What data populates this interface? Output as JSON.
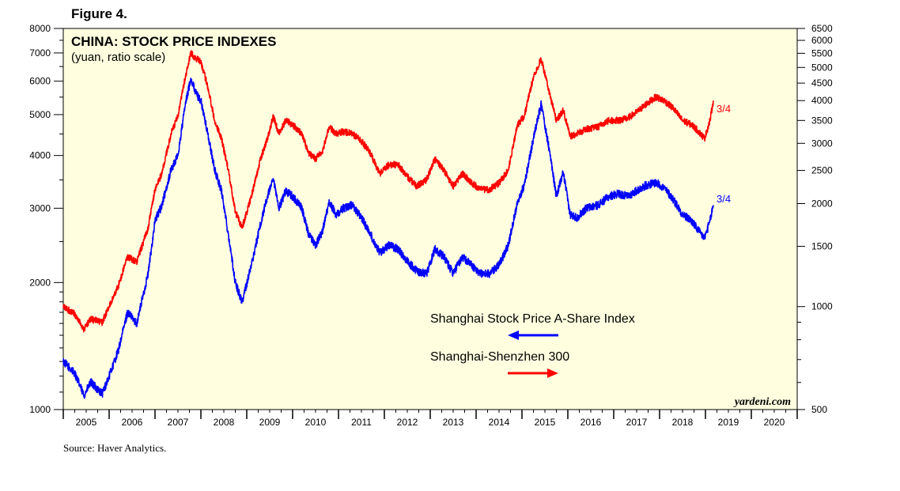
{
  "figure_label": "Figure 4.",
  "source": "Source: Haver Analytics.",
  "colors": {
    "background": "#ffffe0",
    "series_a": "#0000ff",
    "series_b": "#ff0000"
  },
  "chart_data": {
    "type": "line",
    "title": "CHINA: STOCK PRICE INDEXES",
    "subtitle": "(yuan, ratio scale)",
    "watermark": "yardeni.com",
    "scale": "log",
    "x_range": [
      2005.0,
      2021.0
    ],
    "x_tick_labels": [
      "2005",
      "2006",
      "2007",
      "2008",
      "2009",
      "2010",
      "2011",
      "2012",
      "2013",
      "2014",
      "2015",
      "2016",
      "2017",
      "2018",
      "2019",
      "2020"
    ],
    "y_left": {
      "range": [
        1000,
        8000
      ],
      "ticks": [
        1000,
        2000,
        3000,
        4000,
        5000,
        6000,
        7000,
        8000
      ],
      "tick_labels": [
        "1000",
        "2000",
        "3000",
        "4000",
        "5000",
        "6000",
        "7000",
        "8000"
      ]
    },
    "y_right": {
      "range": [
        500,
        6500
      ],
      "ticks": [
        500,
        1000,
        1500,
        2000,
        2500,
        3000,
        3500,
        4000,
        4500,
        5000,
        5500,
        6000,
        6500
      ],
      "tick_labels": [
        "500",
        "1000",
        "1500",
        "2000",
        "2500",
        "3000",
        "3500",
        "4000",
        "4500",
        "5000",
        "5500",
        "6000",
        "6500"
      ]
    },
    "series": [
      {
        "name": "Shanghai Stock Price A-Share Index",
        "axis": "left",
        "legend_arrow": "left",
        "end_label": "3/4",
        "points": [
          [
            2005.0,
            1300
          ],
          [
            2005.25,
            1220
          ],
          [
            2005.45,
            1080
          ],
          [
            2005.6,
            1160
          ],
          [
            2005.85,
            1090
          ],
          [
            2006.0,
            1200
          ],
          [
            2006.2,
            1380
          ],
          [
            2006.4,
            1700
          ],
          [
            2006.6,
            1600
          ],
          [
            2006.85,
            2100
          ],
          [
            2007.0,
            2800
          ],
          [
            2007.15,
            3050
          ],
          [
            2007.35,
            3700
          ],
          [
            2007.5,
            4000
          ],
          [
            2007.65,
            5200
          ],
          [
            2007.78,
            6100
          ],
          [
            2007.9,
            5600
          ],
          [
            2008.0,
            5400
          ],
          [
            2008.15,
            4500
          ],
          [
            2008.3,
            3700
          ],
          [
            2008.45,
            3300
          ],
          [
            2008.6,
            2600
          ],
          [
            2008.75,
            2000
          ],
          [
            2008.9,
            1800
          ],
          [
            2009.1,
            2200
          ],
          [
            2009.3,
            2750
          ],
          [
            2009.45,
            3200
          ],
          [
            2009.58,
            3500
          ],
          [
            2009.7,
            3000
          ],
          [
            2009.85,
            3300
          ],
          [
            2010.0,
            3200
          ],
          [
            2010.2,
            3000
          ],
          [
            2010.35,
            2600
          ],
          [
            2010.5,
            2450
          ],
          [
            2010.65,
            2650
          ],
          [
            2010.8,
            3100
          ],
          [
            2010.95,
            2900
          ],
          [
            2011.1,
            3000
          ],
          [
            2011.3,
            3050
          ],
          [
            2011.5,
            2850
          ],
          [
            2011.7,
            2600
          ],
          [
            2011.9,
            2350
          ],
          [
            2012.1,
            2450
          ],
          [
            2012.3,
            2400
          ],
          [
            2012.5,
            2250
          ],
          [
            2012.7,
            2130
          ],
          [
            2012.92,
            2100
          ],
          [
            2013.1,
            2400
          ],
          [
            2013.3,
            2300
          ],
          [
            2013.5,
            2100
          ],
          [
            2013.7,
            2300
          ],
          [
            2013.9,
            2200
          ],
          [
            2014.1,
            2100
          ],
          [
            2014.3,
            2100
          ],
          [
            2014.5,
            2200
          ],
          [
            2014.7,
            2450
          ],
          [
            2014.9,
            3100
          ],
          [
            2015.05,
            3400
          ],
          [
            2015.25,
            4400
          ],
          [
            2015.42,
            5300
          ],
          [
            2015.6,
            4100
          ],
          [
            2015.75,
            3200
          ],
          [
            2015.9,
            3650
          ],
          [
            2016.05,
            2900
          ],
          [
            2016.2,
            2850
          ],
          [
            2016.4,
            3000
          ],
          [
            2016.65,
            3050
          ],
          [
            2016.9,
            3200
          ],
          [
            2017.1,
            3250
          ],
          [
            2017.3,
            3200
          ],
          [
            2017.5,
            3300
          ],
          [
            2017.7,
            3400
          ],
          [
            2017.92,
            3450
          ],
          [
            2018.1,
            3350
          ],
          [
            2018.3,
            3150
          ],
          [
            2018.5,
            2900
          ],
          [
            2018.7,
            2800
          ],
          [
            2018.85,
            2650
          ],
          [
            2018.98,
            2550
          ],
          [
            2019.1,
            2800
          ],
          [
            2019.17,
            3050
          ]
        ]
      },
      {
        "name": "Shanghai-Shenzhen 300",
        "axis": "right",
        "legend_arrow": "right",
        "end_label": "3/4",
        "points": [
          [
            2005.0,
            1000
          ],
          [
            2005.25,
            950
          ],
          [
            2005.45,
            860
          ],
          [
            2005.6,
            920
          ],
          [
            2005.85,
            900
          ],
          [
            2006.0,
            1000
          ],
          [
            2006.2,
            1150
          ],
          [
            2006.4,
            1400
          ],
          [
            2006.6,
            1350
          ],
          [
            2006.85,
            1700
          ],
          [
            2007.0,
            2200
          ],
          [
            2007.15,
            2450
          ],
          [
            2007.35,
            3200
          ],
          [
            2007.5,
            3600
          ],
          [
            2007.65,
            4600
          ],
          [
            2007.78,
            5500
          ],
          [
            2007.9,
            5300
          ],
          [
            2008.0,
            5200
          ],
          [
            2008.15,
            4400
          ],
          [
            2008.3,
            3500
          ],
          [
            2008.45,
            3100
          ],
          [
            2008.6,
            2500
          ],
          [
            2008.75,
            1900
          ],
          [
            2008.9,
            1700
          ],
          [
            2009.1,
            2100
          ],
          [
            2009.3,
            2700
          ],
          [
            2009.45,
            3100
          ],
          [
            2009.58,
            3600
          ],
          [
            2009.7,
            3200
          ],
          [
            2009.85,
            3500
          ],
          [
            2010.0,
            3400
          ],
          [
            2010.2,
            3200
          ],
          [
            2010.35,
            2800
          ],
          [
            2010.5,
            2700
          ],
          [
            2010.65,
            2850
          ],
          [
            2010.8,
            3350
          ],
          [
            2010.95,
            3200
          ],
          [
            2011.1,
            3250
          ],
          [
            2011.3,
            3200
          ],
          [
            2011.5,
            3050
          ],
          [
            2011.7,
            2800
          ],
          [
            2011.9,
            2450
          ],
          [
            2012.1,
            2600
          ],
          [
            2012.3,
            2600
          ],
          [
            2012.5,
            2400
          ],
          [
            2012.7,
            2250
          ],
          [
            2012.92,
            2350
          ],
          [
            2013.1,
            2700
          ],
          [
            2013.3,
            2500
          ],
          [
            2013.5,
            2250
          ],
          [
            2013.7,
            2450
          ],
          [
            2013.9,
            2300
          ],
          [
            2014.1,
            2200
          ],
          [
            2014.3,
            2200
          ],
          [
            2014.5,
            2300
          ],
          [
            2014.7,
            2500
          ],
          [
            2014.9,
            3400
          ],
          [
            2015.05,
            3600
          ],
          [
            2015.25,
            4700
          ],
          [
            2015.42,
            5300
          ],
          [
            2015.6,
            4200
          ],
          [
            2015.75,
            3500
          ],
          [
            2015.9,
            3750
          ],
          [
            2016.05,
            3150
          ],
          [
            2016.2,
            3200
          ],
          [
            2016.4,
            3300
          ],
          [
            2016.65,
            3350
          ],
          [
            2016.9,
            3500
          ],
          [
            2017.1,
            3500
          ],
          [
            2017.3,
            3550
          ],
          [
            2017.5,
            3700
          ],
          [
            2017.7,
            3900
          ],
          [
            2017.92,
            4100
          ],
          [
            2018.1,
            4000
          ],
          [
            2018.3,
            3800
          ],
          [
            2018.5,
            3500
          ],
          [
            2018.7,
            3400
          ],
          [
            2018.85,
            3250
          ],
          [
            2018.98,
            3100
          ],
          [
            2019.1,
            3500
          ],
          [
            2019.17,
            4000
          ]
        ]
      }
    ]
  }
}
